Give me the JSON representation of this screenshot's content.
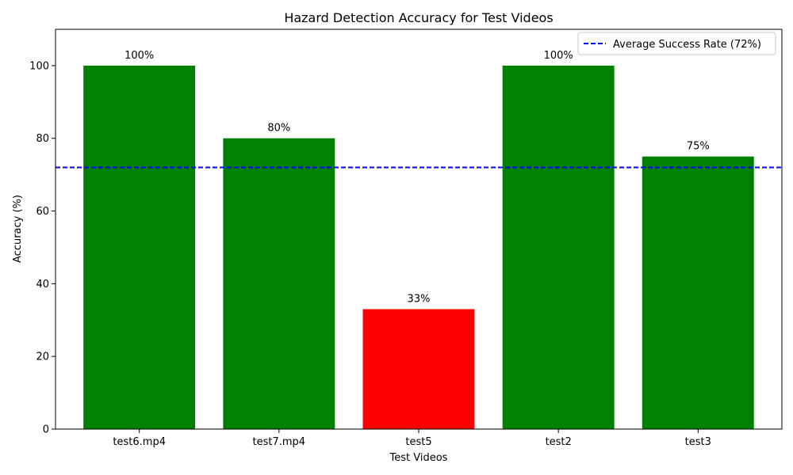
{
  "chart_data": {
    "type": "bar",
    "title": "Hazard Detection Accuracy for Test Videos",
    "xlabel": "Test Videos",
    "ylabel": "Accuracy (%)",
    "categories": [
      "test6.mp4",
      "test7.mp4",
      "test5",
      "test2",
      "test3"
    ],
    "values": [
      100,
      80,
      33,
      100,
      75
    ],
    "data_labels": [
      "100%",
      "80%",
      "33%",
      "100%",
      "75%"
    ],
    "bar_colors": [
      "#008000",
      "#008000",
      "#ff0000",
      "#008000",
      "#008000"
    ],
    "ylim": [
      0,
      110
    ],
    "yticks": [
      0,
      20,
      40,
      60,
      80,
      100
    ],
    "grid": false,
    "reference_line": {
      "value": 72,
      "label": "Average Success Rate (72%)",
      "color": "#0000ff",
      "style": "dashed"
    },
    "legend_position": "top-right"
  }
}
